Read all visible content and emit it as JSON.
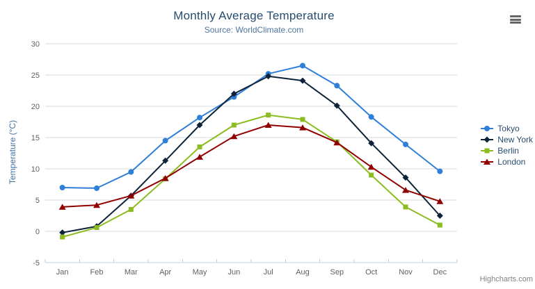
{
  "chart_data": {
    "type": "line",
    "title": "Monthly Average Temperature",
    "subtitle": "Source: WorldClimate.com",
    "xlabel": "",
    "ylabel": "Temperature (°C)",
    "categories": [
      "Jan",
      "Feb",
      "Mar",
      "Apr",
      "May",
      "Jun",
      "Jul",
      "Aug",
      "Sep",
      "Oct",
      "Nov",
      "Dec"
    ],
    "ylim": [
      -5,
      30
    ],
    "yticks": [
      -5,
      0,
      5,
      10,
      15,
      20,
      25,
      30
    ],
    "grid": true,
    "legend_position": "right",
    "series": [
      {
        "name": "Tokyo",
        "color": "#2f7ed8",
        "marker": "circle",
        "values": [
          7.0,
          6.9,
          9.5,
          14.5,
          18.2,
          21.5,
          25.2,
          26.5,
          23.3,
          18.3,
          13.9,
          9.6
        ]
      },
      {
        "name": "New York",
        "color": "#0d233a",
        "marker": "diamond",
        "values": [
          -0.2,
          0.8,
          5.7,
          11.3,
          17.0,
          22.0,
          24.8,
          24.1,
          20.1,
          14.1,
          8.6,
          2.5
        ]
      },
      {
        "name": "Berlin",
        "color": "#8bbc21",
        "marker": "square",
        "values": [
          -0.9,
          0.6,
          3.5,
          8.4,
          13.5,
          17.0,
          18.6,
          17.9,
          14.3,
          9.0,
          3.9,
          1.0
        ]
      },
      {
        "name": "London",
        "color": "#910000",
        "marker": "triangle",
        "values": [
          3.9,
          4.2,
          5.7,
          8.5,
          11.9,
          15.2,
          17.0,
          16.6,
          14.2,
          10.3,
          6.6,
          4.8
        ]
      }
    ],
    "credits": "Highcharts.com"
  },
  "icons": {
    "export_menu": "hamburger-icon"
  },
  "style_colors": {
    "title": "#274b6d",
    "subtitle": "#4d759e",
    "axis_title": "#4572a7",
    "tick_label": "#606060",
    "grid_line": "#d8d8d8",
    "axis_line": "#c0d0e0",
    "credits": "#808080"
  }
}
